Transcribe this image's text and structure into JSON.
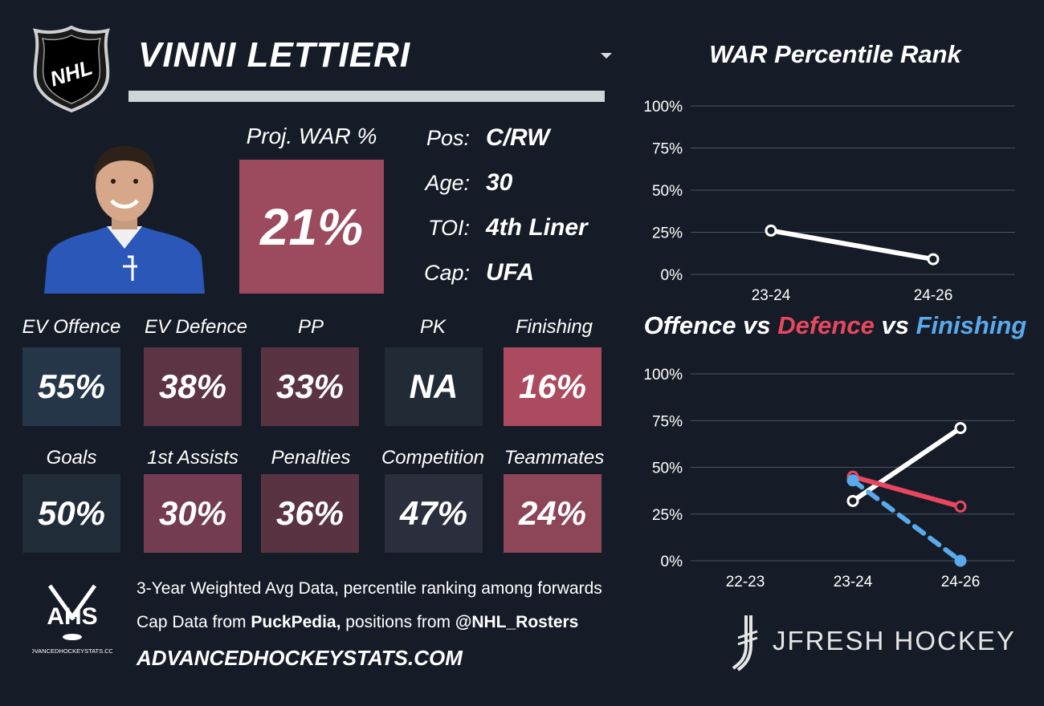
{
  "player": {
    "name": "VINNI LETTIERI",
    "proj_war_label": "Proj. WAR %",
    "proj_war_value": "21%",
    "proj_war_color": "#9c4a5e",
    "info": [
      {
        "label": "Pos:",
        "value": "C/RW"
      },
      {
        "label": "Age:",
        "value": "30"
      },
      {
        "label": "TOI:",
        "value": "4th Liner"
      },
      {
        "label": "Cap:",
        "value": "UFA"
      }
    ],
    "photo_icon": "player-headshot",
    "league_logo": "NHL"
  },
  "stats": [
    {
      "label": "EV Offence",
      "value": "55%",
      "color": "#253649"
    },
    {
      "label": "EV Defence",
      "value": "38%",
      "color": "#5c3444"
    },
    {
      "label": "PP",
      "value": "33%",
      "color": "#5a3343"
    },
    {
      "label": "PK",
      "value": "NA",
      "color": "#212b36"
    },
    {
      "label": "Finishing",
      "value": "16%",
      "color": "#ac4b60"
    },
    {
      "label": "Goals",
      "value": "50%",
      "color": "#212c39"
    },
    {
      "label": "1st Assists",
      "value": "30%",
      "color": "#743c50"
    },
    {
      "label": "Penalties",
      "value": "36%",
      "color": "#5a3343"
    },
    {
      "label": "Competition",
      "value": "47%",
      "color": "#2a2e3d"
    },
    {
      "label": "Teammates",
      "value": "24%",
      "color": "#8d4558"
    }
  ],
  "footer": {
    "line1": "3-Year Weighted Avg Data, percentile ranking among forwards",
    "line2_pre": "Cap Data from ",
    "line2_bold1": "PuckPedia,",
    "line2_mid": " positions from ",
    "line2_bold2": "@NHL_Rosters",
    "site": "ADVANCEDHOCKEYSTATS.COM",
    "ahs_logo": "AHS",
    "ahs_sub": "ADVANCEDHOCKEYSTATS.COM",
    "brand": "JFRESH HOCKEY"
  },
  "chart_data": [
    {
      "type": "line",
      "title": "WAR Percentile Rank",
      "categories": [
        "23-24",
        "24-26"
      ],
      "series": [
        {
          "values": [
            26,
            9
          ],
          "color": "#ffffff"
        }
      ],
      "ylim": [
        0,
        100
      ],
      "yticks": [
        "0%",
        "25%",
        "50%",
        "75%",
        "100%"
      ],
      "grid": true
    },
    {
      "type": "line",
      "title_parts": [
        {
          "text": "Offence",
          "color": "#ffffff"
        },
        {
          "text": " vs ",
          "color": "#ffffff"
        },
        {
          "text": "Defence",
          "color": "#e8475f"
        },
        {
          "text": " vs ",
          "color": "#ffffff"
        },
        {
          "text": "Finishing",
          "color": "#5aa9ea"
        }
      ],
      "categories": [
        "22-23",
        "23-24",
        "24-26"
      ],
      "series": [
        {
          "values": [
            null,
            32,
            71
          ],
          "color": "#ffffff",
          "dashed": false
        },
        {
          "values": [
            null,
            45,
            29
          ],
          "color": "#e8475f",
          "dashed": false
        },
        {
          "values": [
            null,
            43,
            0
          ],
          "color": "#5aa9ea",
          "dashed": true
        }
      ],
      "ylim": [
        0,
        100
      ],
      "yticks": [
        "0%",
        "25%",
        "50%",
        "75%",
        "100%"
      ],
      "grid": true
    }
  ]
}
